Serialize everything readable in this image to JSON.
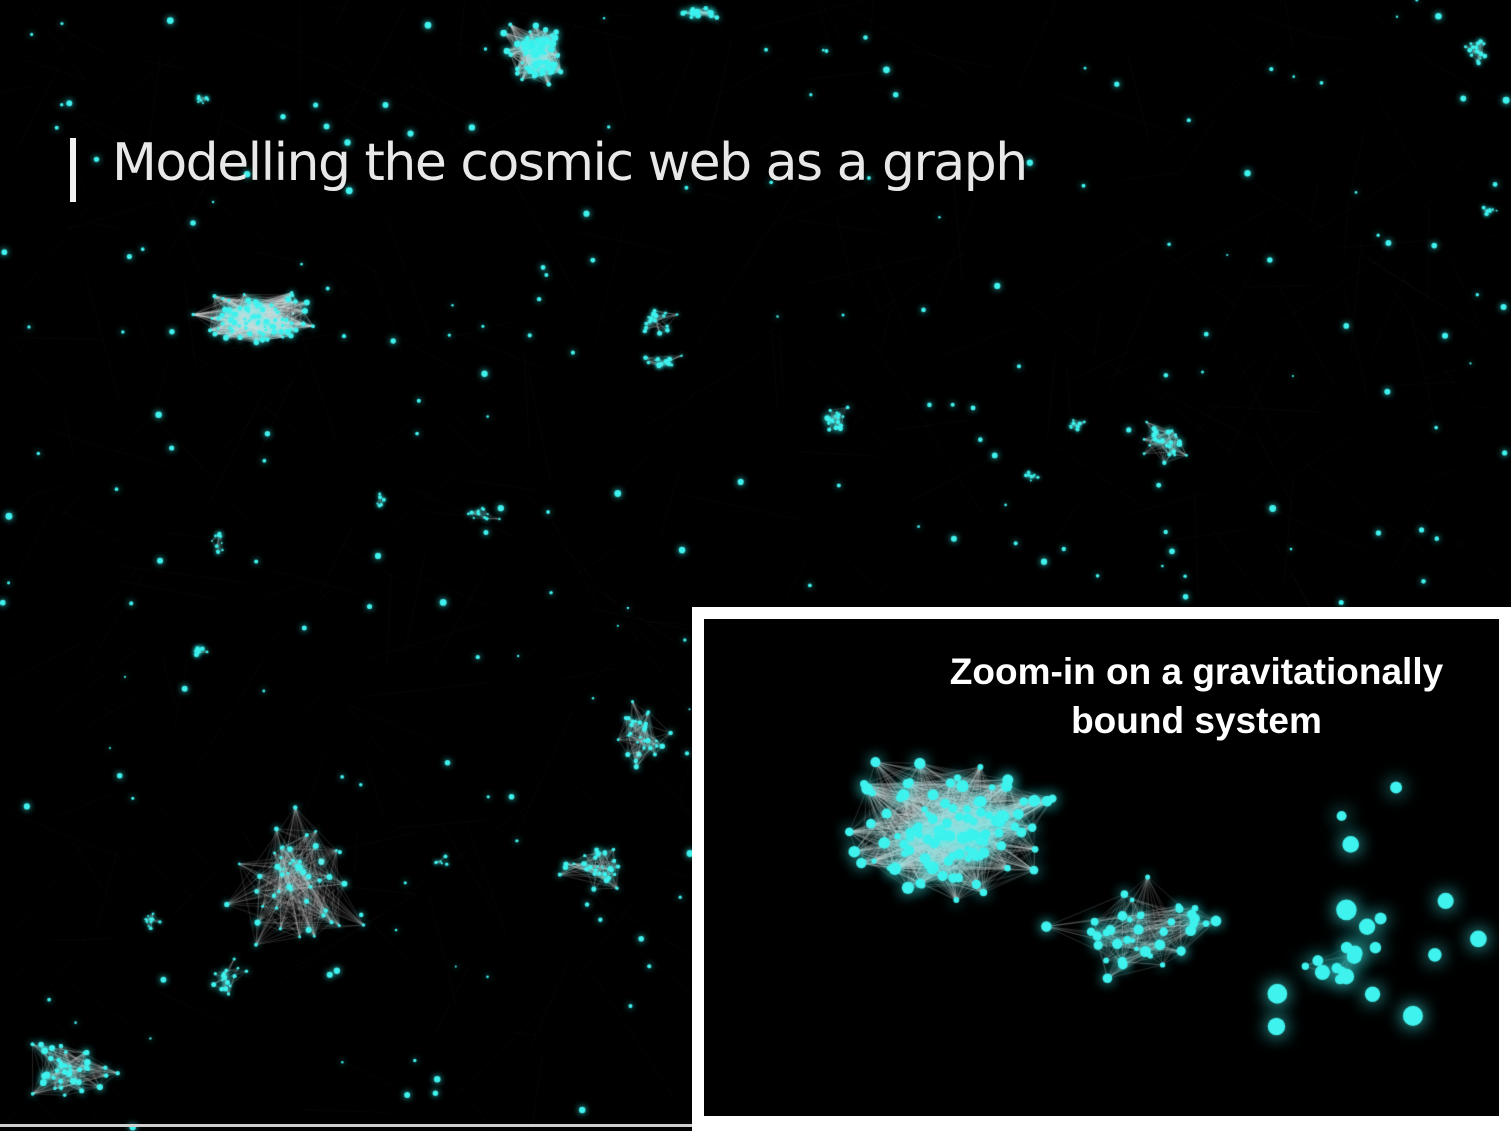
{
  "slide": {
    "title": "Modelling the cosmic web as a graph"
  },
  "inset": {
    "caption_line1": "Zoom-in on a gravitationally",
    "caption_line2": "bound system"
  },
  "colors": {
    "background": "#000000",
    "node": "#3ff2ee",
    "edge": "#d9d9d9",
    "title_text": "#e8e8e8",
    "frame": "#ffffff"
  }
}
